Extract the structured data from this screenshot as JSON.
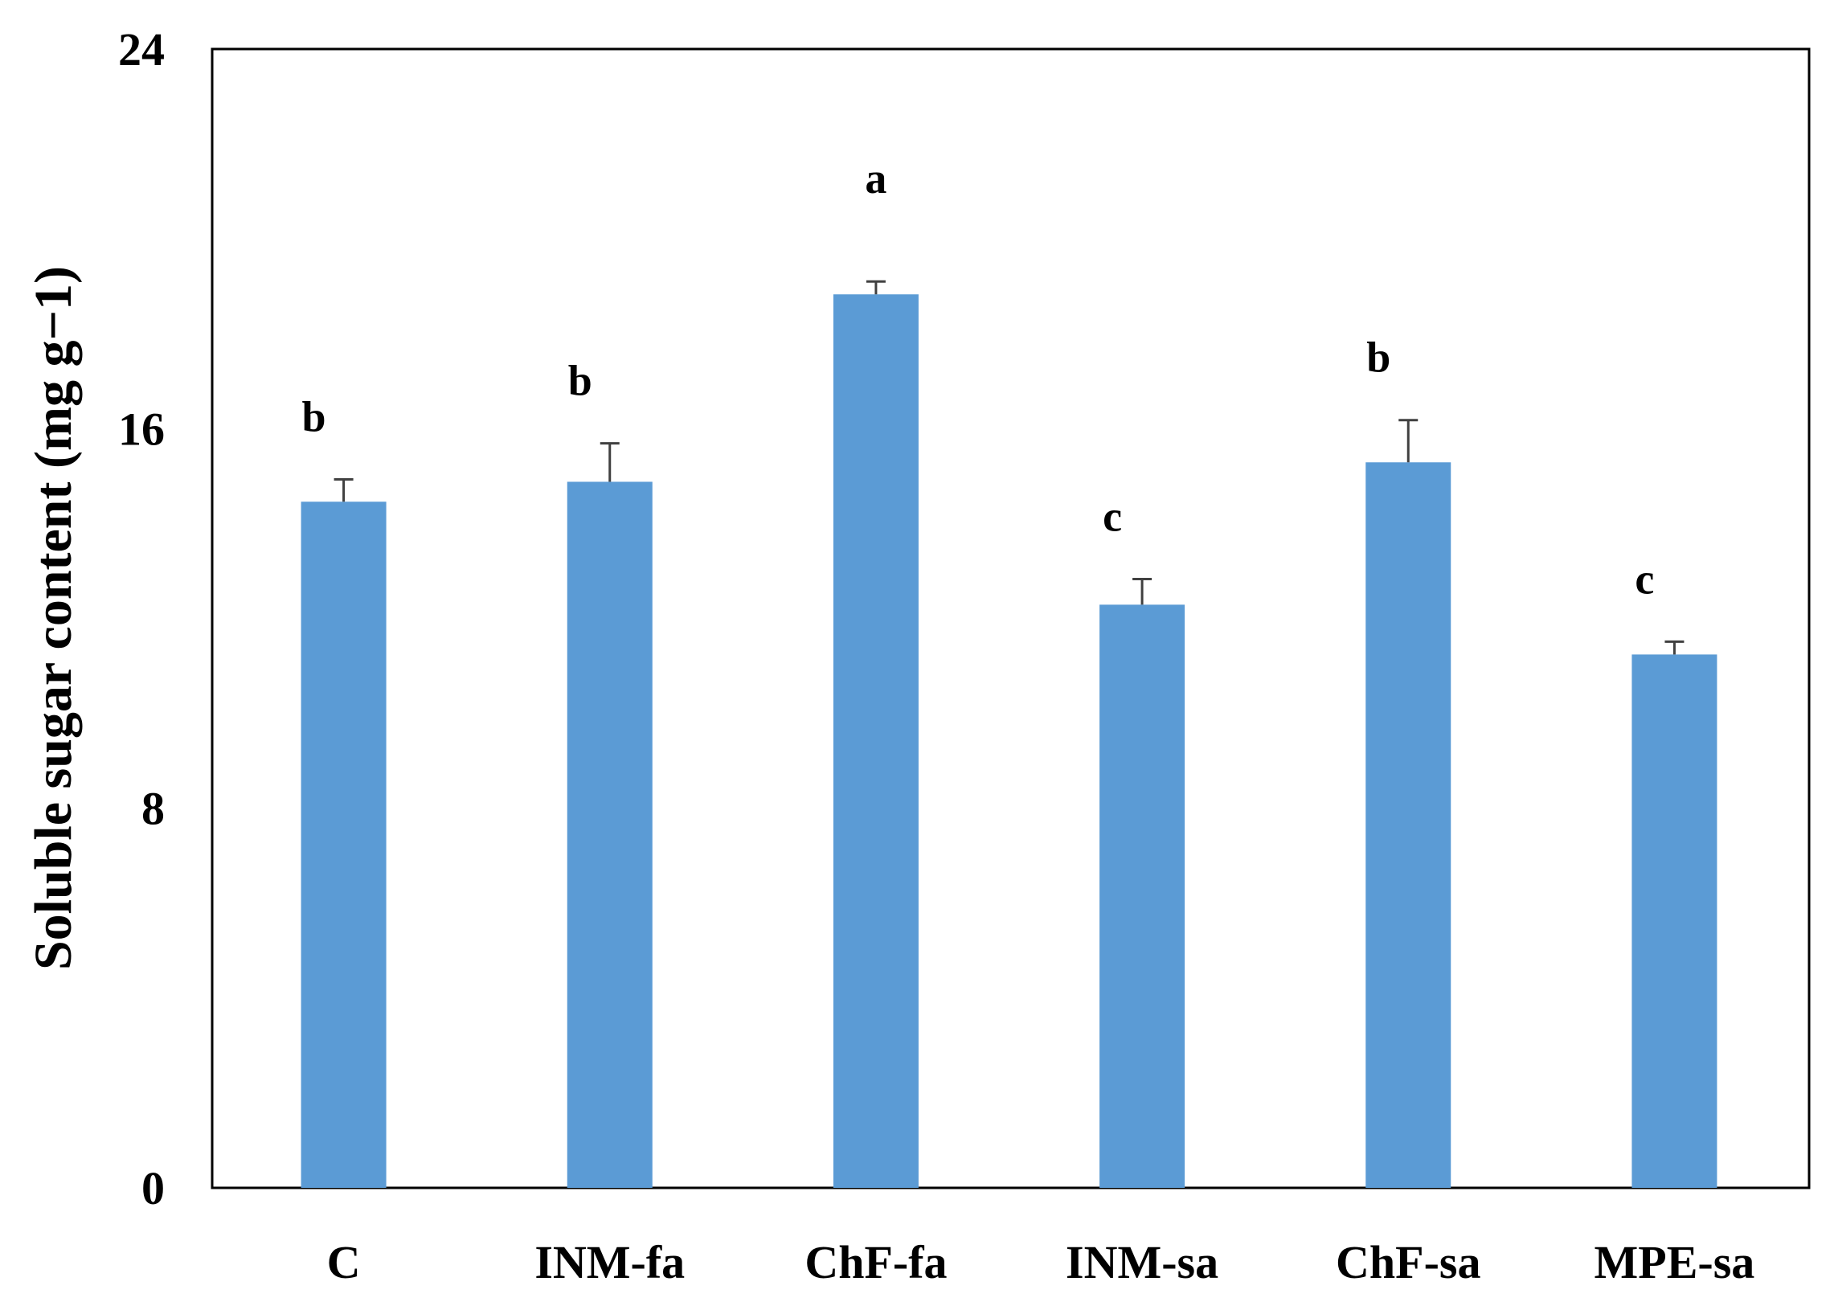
{
  "chart_data": {
    "type": "bar",
    "title": "",
    "xlabel": "",
    "ylabel": "Soluble sugar content (mg g−1)",
    "ylim": [
      0,
      24
    ],
    "yticks": [
      "0",
      "8",
      "16",
      "24"
    ],
    "categories": [
      "C",
      "INM-fa",
      "ChF-fa",
      "INM-sa",
      "ChF-sa",
      "MPE-sa"
    ],
    "values": [
      14.46,
      14.88,
      18.83,
      12.29,
      15.29,
      11.24
    ],
    "errors": [
      0.47,
      0.81,
      0.27,
      0.54,
      0.89,
      0.27
    ],
    "letters": [
      "b",
      "b",
      "a",
      "c",
      "b",
      "c"
    ],
    "grid": false,
    "bar_color": "#5b9bd5"
  }
}
